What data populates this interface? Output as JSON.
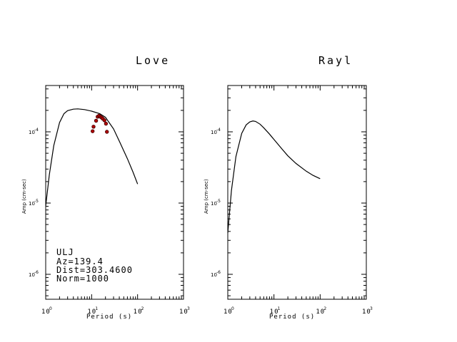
{
  "chart_data": [
    {
      "type": "line",
      "title": "Love",
      "xlabel": "Period (s)",
      "ylabel": "Amp (cm-sec)",
      "x_scale": "log",
      "y_scale": "log",
      "xlim": [
        1,
        1000
      ],
      "ylim": [
        6e-07,
        0.0005
      ],
      "x_ticks": [
        {
          "value": 1,
          "base": "10",
          "exp": "0"
        },
        {
          "value": 10,
          "base": "10",
          "exp": "1"
        },
        {
          "value": 100,
          "base": "10",
          "exp": "2"
        },
        {
          "value": 1000,
          "base": "10",
          "exp": "3"
        }
      ],
      "y_ticks": [
        {
          "value": 0.0001,
          "base": "10",
          "exp": "-4"
        },
        {
          "value": 1e-05,
          "base": "10",
          "exp": "-5"
        },
        {
          "value": 1e-06,
          "base": "10",
          "exp": "-6"
        }
      ],
      "series": [
        {
          "x": [
            1.0,
            1.2,
            1.5,
            2.0,
            2.5,
            3.0,
            4.0,
            5.0,
            7.0,
            10,
            15,
            20,
            30,
            40,
            60,
            80,
            100
          ],
          "y": [
            9.1e-06,
            2.5e-05,
            6.4e-05,
            0.000135,
            0.00018,
            0.000198,
            0.000208,
            0.00021,
            0.000205,
            0.000195,
            0.00018,
            0.00016,
            0.00011,
            7.4e-05,
            4.2e-05,
            2.7e-05,
            1.85e-05
          ]
        },
        {
          "type": "scatter",
          "x": [
            10.5,
            11,
            12.5,
            13.5,
            14.5,
            15.5,
            16.5,
            17.5,
            19,
            20.5,
            21.5
          ],
          "y": [
            0.000102,
            0.000118,
            0.000143,
            0.000163,
            0.000168,
            0.000163,
            0.000158,
            0.000153,
            0.000145,
            0.00013,
            0.0001
          ]
        }
      ],
      "annotations": [
        "ULJ",
        "Az=139.4",
        "Dist=303.4600",
        "Norm=1000"
      ]
    },
    {
      "type": "line",
      "title": "Rayl",
      "xlabel": "Period (s)",
      "ylabel": "Amp (cm-sec)",
      "x_scale": "log",
      "y_scale": "log",
      "xlim": [
        1,
        1000
      ],
      "ylim": [
        6e-07,
        0.0005
      ],
      "x_ticks": [
        {
          "value": 1,
          "base": "10",
          "exp": "0"
        },
        {
          "value": 10,
          "base": "10",
          "exp": "1"
        },
        {
          "value": 100,
          "base": "10",
          "exp": "2"
        },
        {
          "value": 1000,
          "base": "10",
          "exp": "3"
        }
      ],
      "y_ticks": [
        {
          "value": 0.0001,
          "base": "10",
          "exp": "-4"
        },
        {
          "value": 1e-05,
          "base": "10",
          "exp": "-5"
        },
        {
          "value": 1e-06,
          "base": "10",
          "exp": "-6"
        }
      ],
      "series": [
        {
          "x": [
            1.0,
            1.2,
            1.5,
            2.0,
            2.5,
            3.0,
            3.5,
            4.0,
            5.0,
            6.0,
            8.0,
            10,
            15,
            20,
            30,
            50,
            70,
            100
          ],
          "y": [
            3.8e-06,
            1.5e-05,
            4.5e-05,
            9.5e-05,
            0.000125,
            0.000138,
            0.000142,
            0.00014,
            0.000128,
            0.000114,
            9.3e-05,
            7.8e-05,
            5.7e-05,
            4.6e-05,
            3.6e-05,
            2.8e-05,
            2.45e-05,
            2.2e-05
          ]
        }
      ]
    }
  ]
}
